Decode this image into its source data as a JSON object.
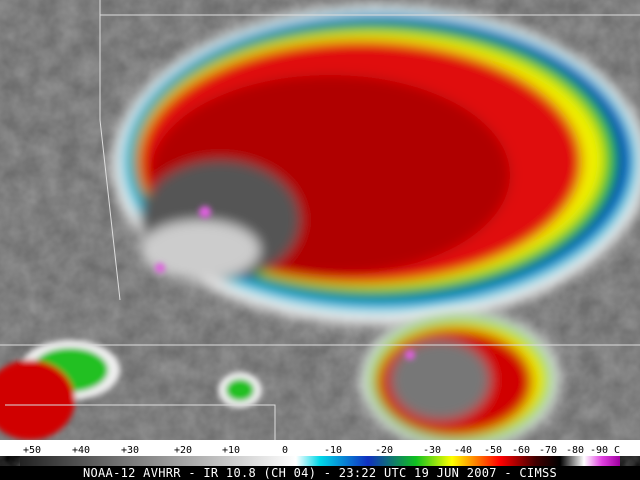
{
  "scale": {
    "labels": [
      "+50",
      "+40",
      "+30",
      "+20",
      "+10",
      "0",
      "-10",
      "-20",
      "-30",
      "-40",
      "-50",
      "-60",
      "-70",
      "-80",
      "-90 C"
    ]
  },
  "caption": "NOAA-12 AVHRR - IR 10.8 (CH 04) - 23:22 UTC 19 JUN 2007 - CIMSS"
}
